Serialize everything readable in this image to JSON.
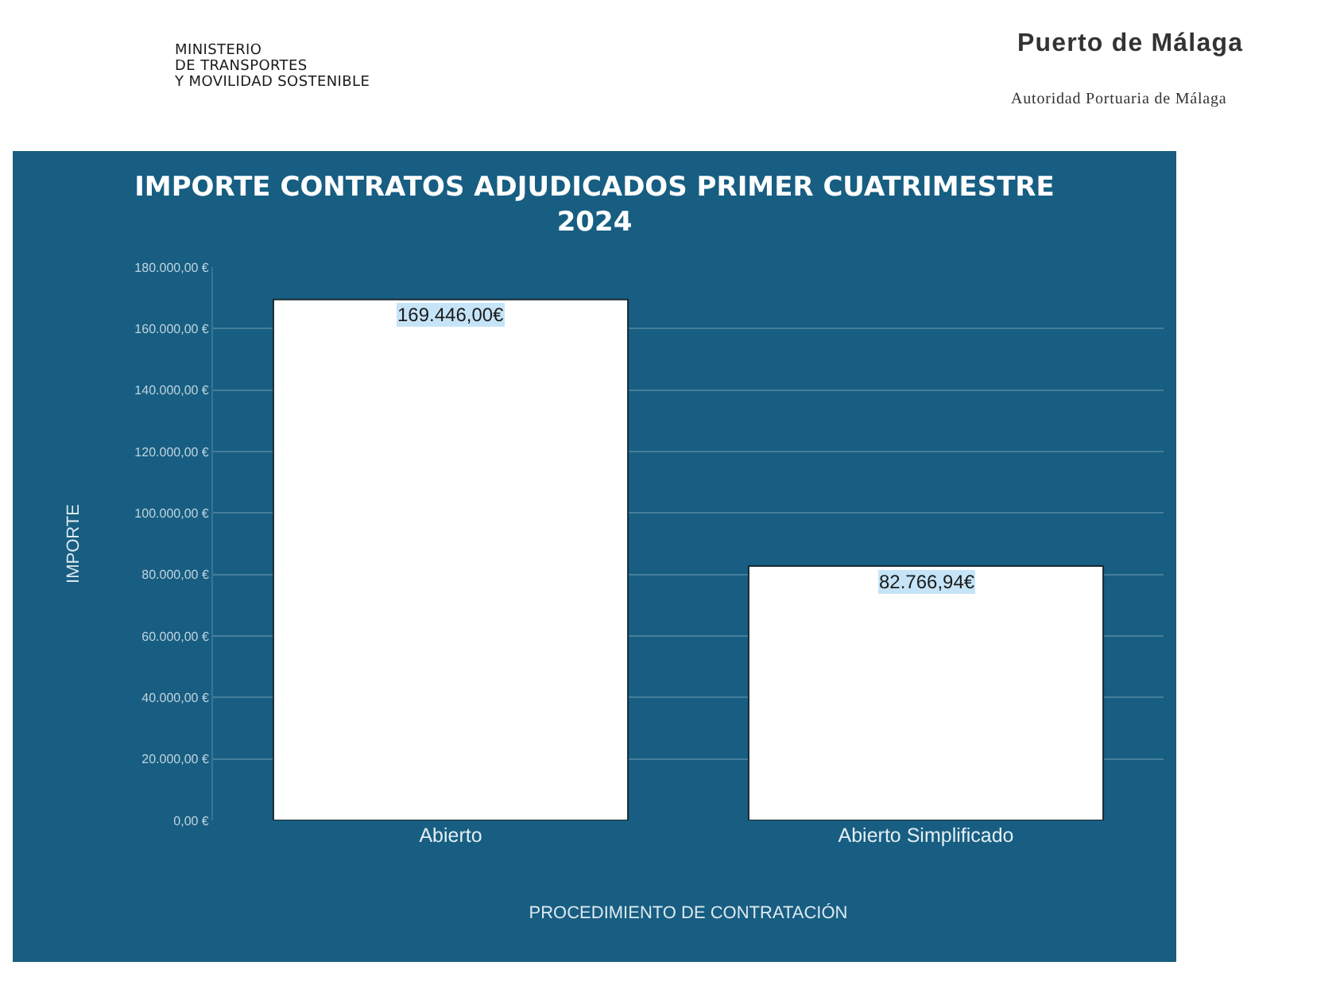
{
  "chart_data": {
    "type": "bar",
    "title": "IMPORTE CONTRATOS ADJUDICADOS PRIMER CUATRIMESTRE\n2024",
    "xlabel": "PROCEDIMIENTO DE CONTRATACIÓN",
    "ylabel": "IMPORTE",
    "categories": [
      "Abierto",
      "Abierto Simplificado"
    ],
    "values": [
      169446,
      82766.94
    ],
    "value_labels": [
      "169.446,00€",
      "82.766,94€"
    ],
    "color": "#ffffff",
    "ylim": [
      0,
      180000
    ],
    "yticks": [
      {
        "value": 0,
        "label": "0,00 €"
      },
      {
        "value": 20000,
        "label": "20.000,00 €"
      },
      {
        "value": 40000,
        "label": "40.000,00 €"
      },
      {
        "value": 60000,
        "label": "60.000,00 €"
      },
      {
        "value": 80000,
        "label": "80.000,00 €"
      },
      {
        "value": 100000,
        "label": "100.000,00 €"
      },
      {
        "value": 120000,
        "label": "120.000,00 €"
      },
      {
        "value": 140000,
        "label": "140.000,00 €"
      },
      {
        "value": 160000,
        "label": "160.000,00 €"
      },
      {
        "value": 180000,
        "label": "180.000,00 €"
      }
    ],
    "grid": "y",
    "annotations": [
      "MINISTERIO\nDE TRANSPORTES\nY MOVILIDAD SOSTENIBLE",
      "Puerto de Málaga",
      "Autoridad Portuaria de Málaga"
    ]
  }
}
